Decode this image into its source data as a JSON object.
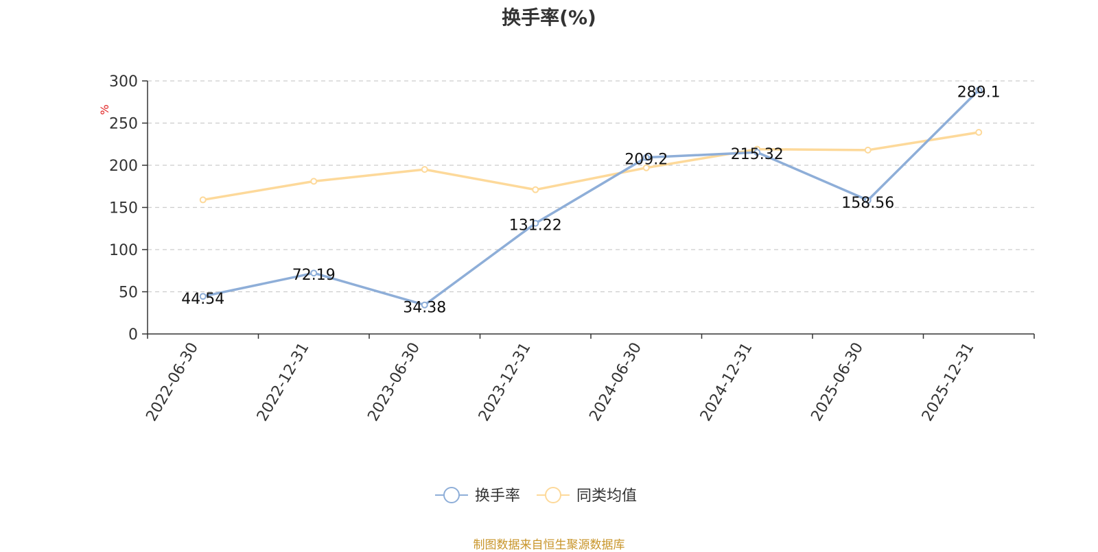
{
  "chart_data": {
    "type": "line",
    "title": "换手率(%)",
    "ylabel": "%",
    "ylim": [
      0,
      300
    ],
    "yticks": [
      0,
      50,
      100,
      150,
      200,
      250,
      300
    ],
    "grid": true,
    "legend_position": "bottom-center",
    "categories": [
      "2022-06-30",
      "2022-12-31",
      "2023-06-30",
      "2023-12-31",
      "2024-06-30",
      "2024-12-31",
      "2025-06-30",
      "2025-12-31"
    ],
    "series": [
      {
        "name": "换手率",
        "color": "#8eaed8",
        "show_labels": true,
        "values": [
          44.54,
          72.19,
          34.38,
          131.22,
          209.2,
          215.32,
          158.56,
          289.1
        ],
        "labels": [
          "44.54",
          "72.19",
          "34.38",
          "131.22",
          "209.2",
          "215.32",
          "158.56",
          "289.1"
        ]
      },
      {
        "name": "同类均值",
        "color": "#fdd99a",
        "show_labels": false,
        "values": [
          159,
          181,
          195,
          171,
          197,
          219,
          218,
          239
        ]
      }
    ]
  },
  "footer": {
    "source": "制图数据来自恒生聚源数据库"
  }
}
